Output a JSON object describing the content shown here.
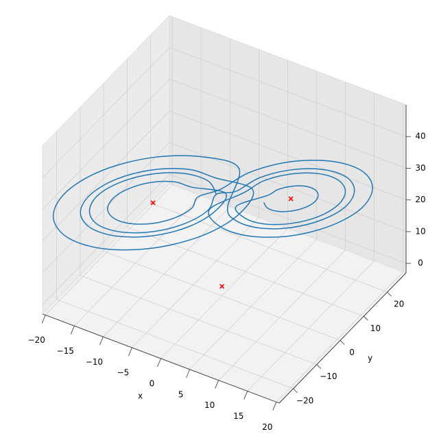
{
  "chart_data": {
    "type": "line3d",
    "xlabel": "x",
    "ylabel": "y",
    "xlim": [
      -20.5,
      20.5
    ],
    "ylim": [
      -26,
      28
    ],
    "zlim": [
      -3,
      50
    ],
    "xticks": [
      {
        "value": -20,
        "label": "−20"
      },
      {
        "value": -15,
        "label": "−15"
      },
      {
        "value": -10,
        "label": "−10"
      },
      {
        "value": -5,
        "label": "−5"
      },
      0,
      5,
      10,
      15,
      20
    ],
    "yticks": [
      {
        "value": -20,
        "label": "−20"
      },
      {
        "value": -10,
        "label": "−10"
      },
      0,
      10,
      20
    ],
    "zticks": [
      0,
      10,
      20,
      30,
      40
    ],
    "grid": true,
    "series": [
      {
        "color": "#1f77b4",
        "x": [
          5.5,
          5.9,
          7,
          8.5,
          10,
          11.1,
          11.5,
          11.1,
          10,
          8.5,
          7,
          5.9,
          2.5,
          3.3,
          5.5,
          8.5,
          11.5,
          13.7,
          14.5,
          13.7,
          11.5,
          8.5,
          5.5,
          3.3,
          -0.5,
          0.7,
          4,
          8.5,
          13,
          16.3,
          17.5,
          16.3,
          13,
          8.5,
          4,
          0.7,
          -3.5,
          -4.2,
          -6,
          -8.5,
          -11,
          -12.8,
          -13.5,
          -12.8,
          -11,
          -8.5,
          -6,
          -4.2,
          -0.5,
          -1.6,
          -4.5,
          -8.5,
          -12.5,
          -15.4,
          -16.5,
          -15.4,
          -12.5,
          -8.5,
          -4.5,
          -1.6,
          2.5,
          1,
          -3,
          -8.5,
          -14,
          -18,
          -19.5,
          -18,
          -14,
          -8.5,
          -3,
          1,
          1.5,
          2.4,
          5,
          8.5,
          12,
          14.6,
          15.5,
          14.6,
          12,
          8.5,
          5,
          2.4,
          -1.5,
          -2.4,
          -5,
          -8.5,
          -12,
          -14.6,
          -15.5,
          -14.6,
          -12,
          -8.5,
          -5,
          -2.4,
          -1.5
        ],
        "y": [
          4.3,
          4.9,
          6.4,
          8.5,
          10.6,
          12.1,
          12.7,
          12.1,
          10.6,
          8.5,
          6.4,
          4.9,
          0.1,
          1.2,
          4.3,
          8.5,
          12.7,
          15.8,
          16.9,
          15.8,
          12.7,
          8.5,
          4.3,
          1.2,
          -4.1,
          -2.4,
          2.2,
          8.5,
          14.8,
          19.4,
          21.1,
          19.4,
          14.8,
          8.5,
          2.2,
          -2.4,
          -1.5,
          -2.5,
          -5,
          -8.5,
          -12,
          -14.5,
          -15.5,
          -14.5,
          -12,
          -8.5,
          -5,
          -2.5,
          2.7,
          1.2,
          -2.9,
          -8.5,
          -14.1,
          -18.2,
          -19.7,
          -18.2,
          -14.1,
          -8.5,
          -2.9,
          1.2,
          6.9,
          4.8,
          -0.8,
          -8.5,
          -16.2,
          -21.8,
          -23.9,
          -21.8,
          -16.2,
          -8.5,
          -0.8,
          4.8,
          -1.3,
          0,
          3.6,
          8.5,
          13.4,
          17,
          18.3,
          17,
          13.4,
          8.5,
          3.6,
          0,
          1.3,
          0,
          -3.6,
          -8.5,
          -13.4,
          -17,
          -18.3,
          -17,
          -13.4,
          -8.5,
          -3.6,
          0,
          1.3
        ],
        "z": [
          27,
          25,
          23.6,
          23.1,
          23.6,
          25,
          27,
          29,
          30.4,
          30.9,
          30.4,
          29,
          27,
          23.1,
          20.2,
          19.2,
          20.2,
          23.1,
          27,
          30.9,
          33.8,
          34.8,
          33.8,
          30.9,
          27,
          21.1,
          16.9,
          15.3,
          16.9,
          21.1,
          27,
          32.9,
          37.1,
          38.7,
          37.1,
          32.9,
          27,
          23.7,
          21.4,
          20.5,
          21.4,
          23.7,
          27,
          30.3,
          32.6,
          33.5,
          32.6,
          30.3,
          27,
          21.8,
          18,
          16.6,
          18,
          21.8,
          27,
          32.2,
          36,
          37.4,
          36,
          32.2,
          27,
          19.8,
          14.6,
          12.7,
          14.6,
          19.8,
          27,
          34.2,
          39.4,
          41.3,
          39.4,
          34.2,
          27,
          22.4,
          19.1,
          17.9,
          19.1,
          22.4,
          27,
          31.6,
          34.9,
          36.1,
          34.9,
          31.6,
          27,
          22.4,
          19.1,
          17.9,
          19.1,
          22.4,
          27,
          31.6,
          34.9,
          36.1,
          34.9,
          31.6,
          27
        ]
      }
    ],
    "markers": {
      "color": "red",
      "x": [
        -8.49,
        8.49,
        0
      ],
      "y": [
        -8.49,
        8.49,
        0
      ],
      "z": [
        27,
        27,
        0
      ]
    }
  }
}
